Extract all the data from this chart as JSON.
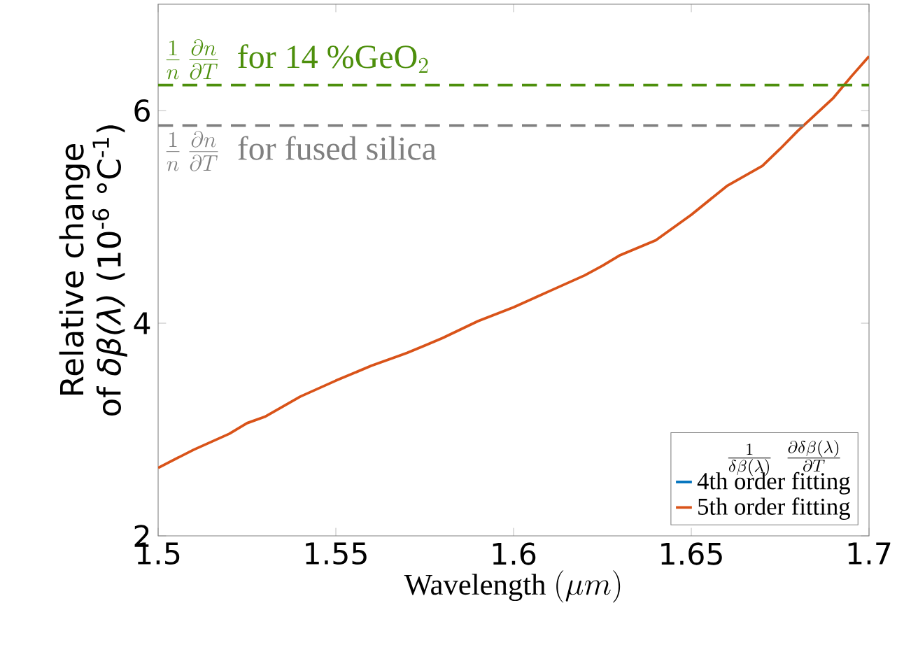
{
  "chart_data": {
    "type": "line",
    "xlabel": "\\mbox{Wavelength }(\\mu m)",
    "ylabel": "Relative change of *δβ(λ)*  (10$^{-6}$ °C$^{-1}$)",
    "legend_title": "\\frac{1}{\\delta\\beta(\\lambda)}\\;\\;\\frac{\\partial\\delta\\beta(\\lambda)}{\\partial T}",
    "x": [
      1.5,
      1.51,
      1.52,
      1.525,
      1.53,
      1.54,
      1.55,
      1.56,
      1.57,
      1.575,
      1.58,
      1.59,
      1.6,
      1.61,
      1.62,
      1.625,
      1.63,
      1.64,
      1.65,
      1.66,
      1.67,
      1.675,
      1.68,
      1.69,
      1.695,
      1.7
    ],
    "series": [
      {
        "name": "4th order fitting",
        "color": "#0072bd",
        "values": [
          null,
          null,
          null,
          null,
          null,
          null,
          null,
          null,
          null,
          null,
          null,
          null,
          null,
          null,
          null,
          null,
          null,
          null,
          null,
          null,
          null,
          null,
          null,
          null,
          null,
          null
        ]
      },
      {
        "name": "5th order fitting",
        "color": "#d95319",
        "values": [
          2.64,
          2.81,
          2.96,
          3.06,
          3.12,
          3.31,
          3.46,
          3.6,
          3.72,
          3.79,
          3.86,
          4.02,
          4.15,
          4.3,
          4.45,
          4.54,
          4.64,
          4.78,
          5.02,
          5.29,
          5.48,
          5.64,
          5.81,
          6.12,
          6.32,
          6.51
        ]
      }
    ],
    "xlim": [
      1.5,
      1.7
    ],
    "ylim": [
      2,
      7
    ],
    "xticks": [
      1.5,
      1.55,
      1.6,
      1.65,
      1.7
    ],
    "yticks": [
      2,
      4,
      6
    ],
    "ref_lines": [
      {
        "axis": "y",
        "value": 6.24,
        "label": "\\frac{1}{n}\\,\\frac{\\partial n}{\\partial T}\\ \\mbox{ for 14 \\%GeO}_2",
        "color": "#4d8f0c",
        "line_style": "dashed"
      },
      {
        "axis": "y",
        "value": 5.86,
        "label": "\\frac{1}{n}\\,\\frac{\\partial n}{\\partial T}\\ \\mbox{ for fused silica}",
        "color": "#808080",
        "line_style": "dashed"
      }
    ],
    "legend": "bottom right",
    "grid": false
  }
}
